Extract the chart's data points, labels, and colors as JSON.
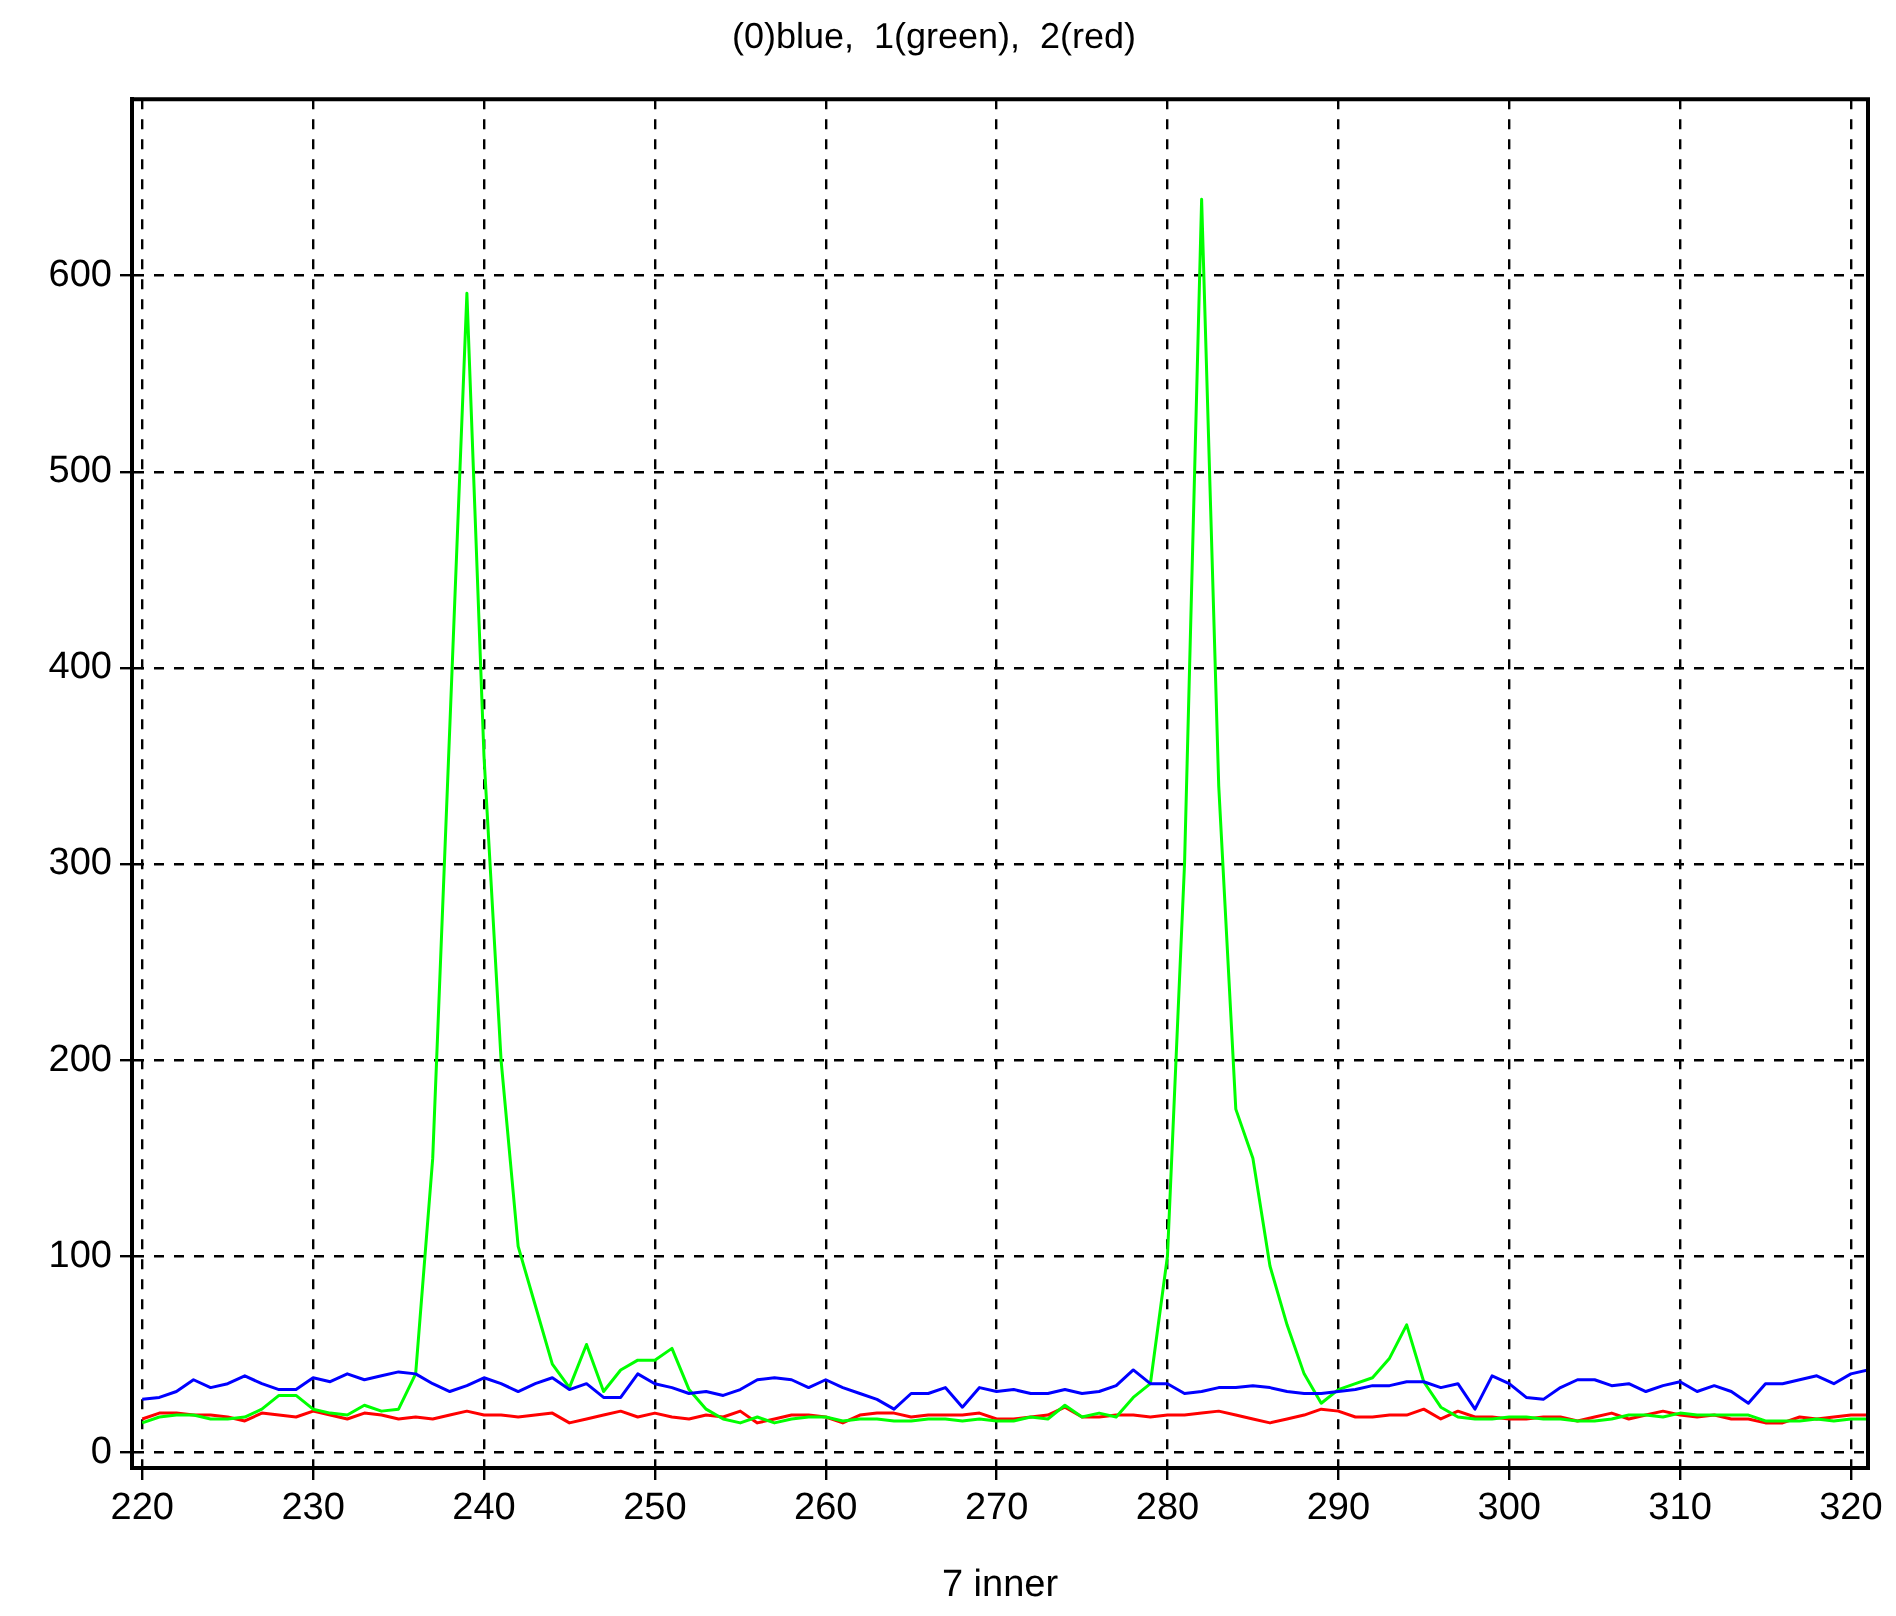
{
  "chart_data": {
    "type": "line",
    "title": "(0)blue,  1(green),  2(red)",
    "xlabel": "7 inner",
    "x": [
      220,
      221,
      222,
      223,
      224,
      225,
      226,
      227,
      228,
      229,
      230,
      231,
      232,
      233,
      234,
      235,
      236,
      237,
      238,
      239,
      240,
      241,
      242,
      243,
      244,
      245,
      246,
      247,
      248,
      249,
      250,
      251,
      252,
      253,
      254,
      255,
      256,
      257,
      258,
      259,
      260,
      261,
      262,
      263,
      264,
      265,
      266,
      267,
      268,
      269,
      270,
      271,
      272,
      273,
      274,
      275,
      276,
      277,
      278,
      279,
      280,
      281,
      282,
      283,
      284,
      285,
      286,
      287,
      288,
      289,
      290,
      291,
      292,
      293,
      294,
      295,
      296,
      297,
      298,
      299,
      300,
      301,
      302,
      303,
      304,
      305,
      306,
      307,
      308,
      309,
      310,
      311,
      312,
      313,
      314,
      315,
      316,
      317,
      318,
      319,
      320,
      321
    ],
    "series": [
      {
        "color": "#0000ff",
        "values": [
          27,
          28,
          31,
          37,
          33,
          35,
          39,
          35,
          32,
          32,
          38,
          36,
          40,
          37,
          39,
          41,
          40,
          35,
          31,
          34,
          38,
          35,
          31,
          35,
          38,
          32,
          35,
          28,
          28,
          40,
          35,
          33,
          30,
          31,
          29,
          32,
          37,
          38,
          37,
          33,
          37,
          33,
          30,
          27,
          22,
          30,
          30,
          33,
          23,
          33,
          31,
          32,
          30,
          30,
          32,
          30,
          31,
          34,
          42,
          35,
          35,
          30,
          31,
          33,
          33,
          34,
          33,
          31,
          30,
          30,
          31,
          32,
          34,
          34,
          36,
          36,
          33,
          35,
          22,
          39,
          35,
          28,
          27,
          33,
          37,
          37,
          34,
          35,
          31,
          34,
          36,
          31,
          34,
          31,
          25,
          35,
          35,
          37,
          39,
          35,
          40,
          42
        ]
      },
      {
        "color": "#00ff00",
        "values": [
          15,
          18,
          19,
          19,
          17,
          17,
          18,
          22,
          29,
          29,
          22,
          20,
          19,
          24,
          21,
          22,
          40,
          150,
          370,
          591,
          355,
          200,
          105,
          75,
          45,
          33,
          55,
          31,
          42,
          47,
          47,
          53,
          32,
          22,
          17,
          15,
          18,
          15,
          17,
          18,
          18,
          16,
          17,
          17,
          16,
          16,
          17,
          17,
          16,
          17,
          16,
          16,
          18,
          17,
          24,
          18,
          20,
          18,
          28,
          35,
          100,
          300,
          639,
          340,
          175,
          150,
          95,
          65,
          40,
          25,
          32,
          35,
          38,
          48,
          65,
          36,
          23,
          18,
          17,
          17,
          18,
          18,
          17,
          17,
          16,
          16,
          17,
          19,
          19,
          18,
          20,
          19,
          19,
          19,
          19,
          16,
          16,
          16,
          17,
          16,
          17,
          17
        ]
      },
      {
        "color": "#ff0000",
        "values": [
          17,
          20,
          20,
          19,
          19,
          18,
          16,
          20,
          19,
          18,
          21,
          19,
          17,
          20,
          19,
          17,
          18,
          17,
          19,
          21,
          19,
          19,
          18,
          19,
          20,
          15,
          17,
          19,
          21,
          18,
          20,
          18,
          17,
          19,
          18,
          21,
          15,
          17,
          19,
          19,
          18,
          15,
          19,
          20,
          20,
          18,
          19,
          19,
          19,
          20,
          17,
          17,
          18,
          19,
          23,
          18,
          18,
          19,
          19,
          18,
          19,
          19,
          20,
          21,
          19,
          17,
          15,
          17,
          19,
          22,
          21,
          18,
          18,
          19,
          19,
          22,
          17,
          21,
          18,
          18,
          17,
          17,
          18,
          18,
          16,
          18,
          20,
          17,
          19,
          21,
          19,
          18,
          19,
          17,
          17,
          15,
          15,
          18,
          17,
          18,
          19,
          19
        ]
      }
    ],
    "xlim": [
      219.4,
      321
    ],
    "ylim": [
      -8,
      690
    ],
    "xticks": [
      220,
      230,
      240,
      250,
      260,
      270,
      280,
      290,
      300,
      310,
      320
    ],
    "yticks": [
      0,
      100,
      200,
      300,
      400,
      500,
      600
    ],
    "grid": true
  }
}
